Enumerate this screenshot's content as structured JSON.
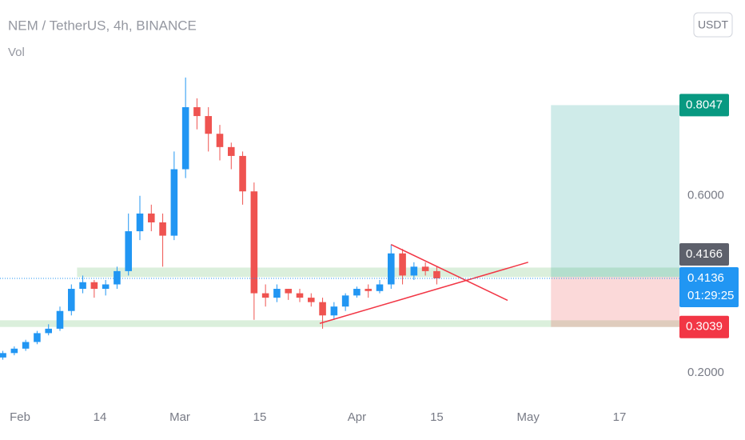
{
  "chart_data": {
    "type": "candlestick",
    "title": "NEM / TetherUS, 4h, BINANCE",
    "subtitle": "Vol",
    "currency_button": "USDT",
    "x": [
      -3,
      -1,
      1,
      3,
      5,
      7,
      9,
      11,
      13,
      15,
      17,
      19,
      21,
      23,
      25,
      27,
      29,
      31,
      33,
      35,
      37,
      39,
      41,
      43,
      45,
      47,
      49,
      51,
      53,
      55,
      57,
      59,
      61,
      63,
      65,
      67,
      69,
      71,
      73
    ],
    "open": [
      0.235,
      0.245,
      0.255,
      0.27,
      0.29,
      0.3,
      0.34,
      0.39,
      0.405,
      0.39,
      0.4,
      0.43,
      0.52,
      0.56,
      0.54,
      0.51,
      0.66,
      0.8,
      0.78,
      0.74,
      0.71,
      0.69,
      0.61,
      0.38,
      0.37,
      0.39,
      0.38,
      0.37,
      0.36,
      0.33,
      0.35,
      0.375,
      0.39,
      0.385,
      0.4,
      0.47,
      0.42,
      0.44,
      0.43
    ],
    "high": [
      0.25,
      0.26,
      0.275,
      0.295,
      0.31,
      0.35,
      0.4,
      0.42,
      0.41,
      0.41,
      0.44,
      0.56,
      0.6,
      0.58,
      0.56,
      0.7,
      0.867,
      0.82,
      0.8,
      0.76,
      0.72,
      0.7,
      0.63,
      0.4,
      0.4,
      0.39,
      0.39,
      0.38,
      0.37,
      0.36,
      0.38,
      0.395,
      0.4,
      0.41,
      0.49,
      0.48,
      0.45,
      0.45,
      0.44
    ],
    "low": [
      0.23,
      0.24,
      0.25,
      0.265,
      0.285,
      0.295,
      0.33,
      0.38,
      0.37,
      0.375,
      0.39,
      0.42,
      0.5,
      0.52,
      0.44,
      0.5,
      0.64,
      0.75,
      0.7,
      0.68,
      0.66,
      0.58,
      0.32,
      0.35,
      0.36,
      0.365,
      0.36,
      0.35,
      0.3,
      0.32,
      0.34,
      0.37,
      0.37,
      0.38,
      0.39,
      0.4,
      0.41,
      0.42,
      0.4
    ],
    "close": [
      0.245,
      0.255,
      0.27,
      0.29,
      0.3,
      0.34,
      0.39,
      0.405,
      0.39,
      0.4,
      0.43,
      0.52,
      0.56,
      0.54,
      0.51,
      0.66,
      0.8,
      0.78,
      0.74,
      0.71,
      0.69,
      0.61,
      0.38,
      0.37,
      0.39,
      0.38,
      0.37,
      0.36,
      0.33,
      0.35,
      0.375,
      0.39,
      0.385,
      0.4,
      0.47,
      0.42,
      0.44,
      0.43,
      0.4136
    ],
    "up_color": "#2196f3",
    "down_color": "#ef5350",
    "xlim": [
      -3.5,
      115.5
    ],
    "xticks": [
      {
        "value": 0,
        "label": "Feb"
      },
      14,
      {
        "value": 28,
        "label": "Mar"
      },
      {
        "value": 42,
        "label": "15"
      },
      {
        "value": 59,
        "label": "Apr"
      },
      {
        "value": 73,
        "label": "15"
      },
      {
        "value": 89,
        "label": "May"
      },
      {
        "value": 105,
        "label": "17"
      }
    ],
    "ylim": [
      0.121,
      1.042
    ],
    "yticks": [
      {
        "value": 0.2,
        "label": "0.2000"
      },
      {
        "value": 0.6,
        "label": "0.6000"
      }
    ],
    "zones": [
      {
        "x": [
          10,
          115.5
        ],
        "y": [
          0.4166,
          0.438
        ]
      },
      {
        "x": [
          -3.5,
          115.5
        ],
        "y": [
          0.3039,
          0.319
        ]
      }
    ],
    "trendlines": [
      {
        "x": [
          52.5,
          89
        ],
        "y": [
          0.312,
          0.45
        ]
      },
      {
        "x": [
          65,
          85.4
        ],
        "y": [
          0.49,
          0.364
        ]
      }
    ],
    "position": {
      "x": 93,
      "entry": 0.4166,
      "target": 0.8047,
      "stop": 0.3039,
      "entry_label": "0.4166",
      "target_label": "0.8047",
      "stop_label": "0.3039"
    },
    "last_price": 0.4136,
    "last_price_label": "0.4136",
    "countdown": "01:29:25"
  }
}
